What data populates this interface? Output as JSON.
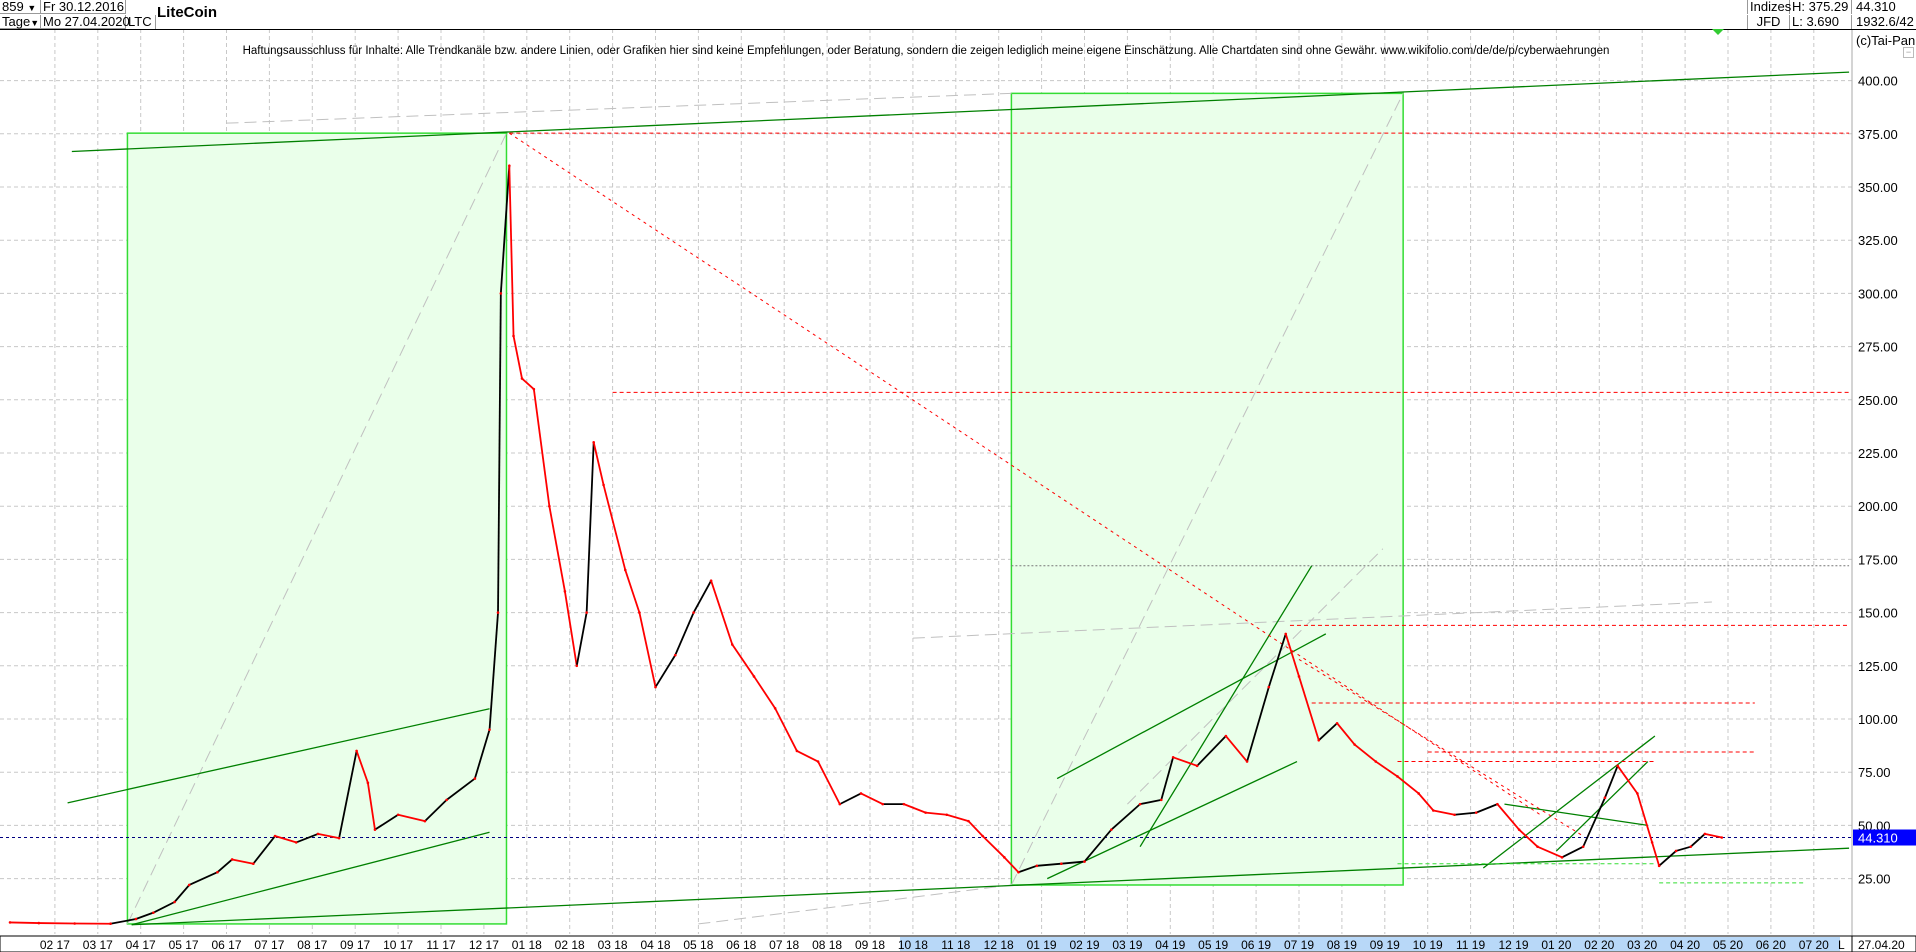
{
  "header": {
    "bars_count": "859",
    "start_date": "Fr 30.12.2016",
    "period": "Tage",
    "end_date": "Mo 27.04.2020",
    "symbol": "LTC",
    "name": "LiteCoin",
    "exchange_group": "Indizes",
    "exchange": "JFD",
    "high": "H: 375.29",
    "low": "L: 3.690",
    "last": "44.310",
    "info": "1932.6/42",
    "copyright": "(c)Tai-Pan"
  },
  "disclaimer": "Haftungsausschluss für Inhalte: Alle Trendkanäle bzw. andere Linien, oder Grafiken hier sind keine Empfehlungen, oder Beratung, sondern die zeigen lediglich meine eigene Einschätzung. Alle Chartdaten sind ohne Gewähr.  www.wikifolio.com/de/de/p/cyberwaehrungen",
  "colors": {
    "price_up": "#000000",
    "price_down": "#ff0000",
    "box_fill": "#eaffea",
    "box_stroke": "#33dd33",
    "trend": "#008000",
    "resistance": "#ff0000",
    "last_price_bg": "#0000ff"
  },
  "chart_data": {
    "type": "line",
    "title": "LiteCoin",
    "ylim": [
      0,
      412
    ],
    "yticks": [
      "25.00",
      "50.00",
      "75.00",
      "100.00",
      "125.00",
      "150.00",
      "175.00",
      "200.00",
      "225.00",
      "250.00",
      "275.00",
      "300.00",
      "325.00",
      "350.00",
      "375.00",
      "400.00"
    ],
    "ytick_values": [
      25,
      50,
      75,
      100,
      125,
      150,
      175,
      200,
      225,
      250,
      275,
      300,
      325,
      350,
      375,
      400
    ],
    "xtick_labels": [
      "02 17",
      "03 17",
      "04 17",
      "05 17",
      "06 17",
      "07 17",
      "08 17",
      "09 17",
      "10 17",
      "11 17",
      "12 17",
      "01 18",
      "02 18",
      "03 18",
      "04 18",
      "05 18",
      "06 18",
      "07 18",
      "08 18",
      "09 18",
      "10 18",
      "11 18",
      "12 18",
      "01 19",
      "02 19",
      "03 19",
      "04 19",
      "05 19",
      "06 19",
      "07 19",
      "08 19",
      "09 19",
      "10 19",
      "11 19",
      "12 19",
      "01 20",
      "02 20",
      "03 20",
      "04 20",
      "05 20",
      "06 20",
      "07 20"
    ],
    "x_end_label": "27.04.20",
    "x_mode_label": "L",
    "grid": true,
    "last_price": 44.31,
    "last_price_label": "44.310",
    "series": [
      {
        "x": [
          "2016-12-30",
          "2017-01-20",
          "2017-02-15",
          "2017-03-10",
          "2017-03-28",
          "2017-04-10",
          "2017-04-25",
          "2017-05-05",
          "2017-05-25",
          "2017-06-05",
          "2017-06-20",
          "2017-07-05",
          "2017-07-20",
          "2017-08-05",
          "2017-08-20",
          "2017-09-02",
          "2017-09-10",
          "2017-09-15",
          "2017-10-01",
          "2017-10-20",
          "2017-11-05",
          "2017-11-25",
          "2017-12-05",
          "2017-12-11",
          "2017-12-13",
          "2017-12-19",
          "2017-12-22",
          "2017-12-28",
          "2018-01-06",
          "2018-01-17",
          "2018-01-28",
          "2018-02-06",
          "2018-02-13",
          "2018-02-18",
          "2018-02-25",
          "2018-03-10",
          "2018-03-20",
          "2018-04-01",
          "2018-04-15",
          "2018-04-28",
          "2018-05-10",
          "2018-05-25",
          "2018-06-10",
          "2018-06-25",
          "2018-07-10",
          "2018-07-25",
          "2018-08-10",
          "2018-08-25",
          "2018-09-10",
          "2018-09-25",
          "2018-10-10",
          "2018-10-25",
          "2018-11-10",
          "2018-11-20",
          "2018-12-05",
          "2018-12-15",
          "2018-12-28",
          "2019-01-15",
          "2019-02-01",
          "2019-02-20",
          "2019-03-10",
          "2019-03-25",
          "2019-04-03",
          "2019-04-20",
          "2019-05-10",
          "2019-05-25",
          "2019-06-10",
          "2019-06-22",
          "2019-07-01",
          "2019-07-15",
          "2019-07-28",
          "2019-08-10",
          "2019-08-25",
          "2019-09-10",
          "2019-09-25",
          "2019-10-05",
          "2019-10-20",
          "2019-11-05",
          "2019-11-20",
          "2019-12-05",
          "2019-12-18",
          "2020-01-05",
          "2020-01-20",
          "2020-02-05",
          "2020-02-14",
          "2020-02-28",
          "2020-03-08",
          "2020-03-13",
          "2020-03-25",
          "2020-04-05",
          "2020-04-15",
          "2020-04-27"
        ],
        "y": [
          4.4,
          4.1,
          3.9,
          3.8,
          6,
          9,
          14,
          22,
          28,
          34,
          32,
          45,
          42,
          46,
          44,
          85,
          70,
          48,
          55,
          52,
          62,
          72,
          95,
          150,
          300,
          360,
          280,
          260,
          255,
          200,
          160,
          125,
          150,
          230,
          210,
          170,
          150,
          115,
          130,
          150,
          165,
          135,
          120,
          105,
          85,
          80,
          60,
          65,
          60,
          60,
          56,
          55,
          52,
          45,
          35,
          28,
          31,
          32,
          33,
          48,
          60,
          62,
          82,
          78,
          92,
          80,
          115,
          140,
          120,
          90,
          98,
          88,
          80,
          73,
          65,
          57,
          55,
          56,
          60,
          48,
          40,
          35,
          40,
          63,
          78,
          65,
          42,
          31,
          38,
          40,
          46,
          44.31
        ]
      }
    ],
    "annotations": {
      "boxes": [
        {
          "x0": "2017-03-22",
          "x1": "2017-12-17",
          "y0": 3.7,
          "y1": 375.3
        },
        {
          "x0": "2018-12-10",
          "x1": "2019-09-14",
          "y0": 22,
          "y1": 394
        }
      ],
      "trend_lines": [
        {
          "x0": "2017-02-13",
          "y0": 366.7,
          "x1": "2020-07-26",
          "y1": 404
        },
        {
          "x0": "2017-03-25",
          "y0": 3.3,
          "x1": "2020-07-26",
          "y1": 39.3
        },
        {
          "x0": "2017-02-10",
          "y0": 60.6,
          "x1": "2017-12-05",
          "y1": 104.8
        },
        {
          "x0": "2017-03-25",
          "y0": 3.3,
          "x1": "2017-12-05",
          "y1": 46.8
        },
        {
          "x0": "2019-01-12",
          "y0": 72,
          "x1": "2019-07-20",
          "y1": 140
        },
        {
          "x0": "2019-03-10",
          "y0": 40,
          "x1": "2019-07-10",
          "y1": 172
        },
        {
          "x0": "2019-01-05",
          "y0": 25,
          "x1": "2019-06-30",
          "y1": 80
        },
        {
          "x0": "2019-11-10",
          "y0": 30,
          "x1": "2020-03-10",
          "y1": 92
        },
        {
          "x0": "2020-01-01",
          "y0": 38,
          "x1": "2020-03-05",
          "y1": 80
        },
        {
          "x0": "2019-11-25",
          "y0": 60,
          "x1": "2020-03-05",
          "y1": 50
        }
      ],
      "resistance_lines": [
        {
          "x0": "2017-12-19",
          "x1": "2020-07-26",
          "y": 375.3
        },
        {
          "x0": "2018-03-01",
          "x1": "2020-07-26",
          "y": 253.5
        },
        {
          "x0": "2019-06-25",
          "x1": "2020-07-26",
          "y": 144
        },
        {
          "x0": "2019-07-10",
          "x1": "2020-05-20",
          "y": 107.5
        },
        {
          "x0": "2019-10-01",
          "x1": "2020-05-20",
          "y": 84.5
        },
        {
          "x0": "2019-09-10",
          "x1": "2020-03-10",
          "y": 80
        }
      ],
      "falling_lines": [
        {
          "x0": "2017-12-19",
          "y0": 375.3,
          "x1": "2019-12-20",
          "y1": 55
        },
        {
          "x0": "2019-07-01",
          "y0": 128,
          "x1": "2020-01-20",
          "y1": 45
        }
      ],
      "support_lines": [
        {
          "x0": "2020-03-13",
          "x1": "2020-06-25",
          "y": 23
        },
        {
          "x0": "2019-09-10",
          "x1": "2020-03-10",
          "y": 32
        }
      ],
      "gray_lines": [
        {
          "x0": "2017-03-22",
          "y0": 3.7,
          "x1": "2017-12-17",
          "y1": 375.3
        },
        {
          "x0": "2018-12-10",
          "y0": 22,
          "x1": "2019-09-14",
          "y1": 394
        },
        {
          "x0": "2017-06-01",
          "y0": 380,
          "x1": "2018-12-10",
          "y1": 394
        },
        {
          "x0": "2018-05-01",
          "y0": 3.7,
          "x1": "2018-12-10",
          "y1": 22
        },
        {
          "x0": "2018-10-01",
          "y0": 138,
          "x1": "2020-04-20",
          "y1": 155
        },
        {
          "x0": "2019-03-01",
          "y0": 60,
          "x1": "2019-08-30",
          "y1": 180
        }
      ],
      "gray_levels": [
        {
          "x0": "2018-12-10",
          "x1": "2020-07-26",
          "y": 172
        }
      ]
    }
  }
}
